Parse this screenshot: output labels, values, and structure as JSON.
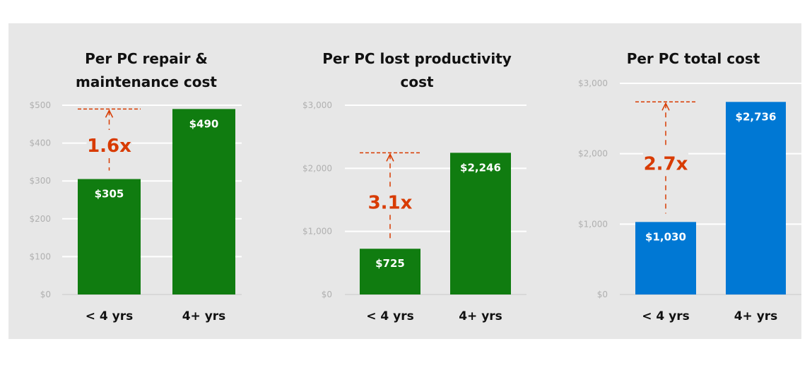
{
  "colors": {
    "green": "#107c10",
    "blue": "#0078d4",
    "annotation": "#d83b01",
    "grid": "#ffffff"
  },
  "chart_data": [
    {
      "type": "bar",
      "title": [
        "Per PC repair &",
        "maintenance cost"
      ],
      "categories": [
        "< 4 yrs",
        "4+ yrs"
      ],
      "values": [
        305,
        490
      ],
      "value_labels": [
        "$305",
        "$490"
      ],
      "ylim": [
        0,
        500
      ],
      "yticks": [
        0,
        100,
        200,
        300,
        400,
        500
      ],
      "ytick_labels": [
        "$0",
        "$100",
        "$200",
        "$300",
        "$400",
        "$500"
      ],
      "color": "green",
      "annotation": "1.6x"
    },
    {
      "type": "bar",
      "title": [
        "Per PC lost productivity",
        "cost"
      ],
      "categories": [
        "< 4 yrs",
        "4+ yrs"
      ],
      "values": [
        725,
        2246
      ],
      "value_labels": [
        "$725",
        "$2,246"
      ],
      "ylim": [
        0,
        3000
      ],
      "yticks": [
        0,
        1000,
        2000,
        3000
      ],
      "ytick_labels": [
        "$0",
        "$1,000",
        "$2,000",
        "$3,000"
      ],
      "color": "green",
      "annotation": "3.1x"
    },
    {
      "type": "bar",
      "title": [
        "Per PC total cost"
      ],
      "categories": [
        "< 4 yrs",
        "4+ yrs"
      ],
      "values": [
        1030,
        2736
      ],
      "value_labels": [
        "$1,030",
        "$2,736"
      ],
      "ylim": [
        0,
        3000
      ],
      "yticks": [
        0,
        1000,
        2000,
        3000
      ],
      "ytick_labels": [
        "$0",
        "$1,000",
        "$2,000",
        "$3,000"
      ],
      "color": "blue",
      "annotation": "2.7x"
    }
  ]
}
